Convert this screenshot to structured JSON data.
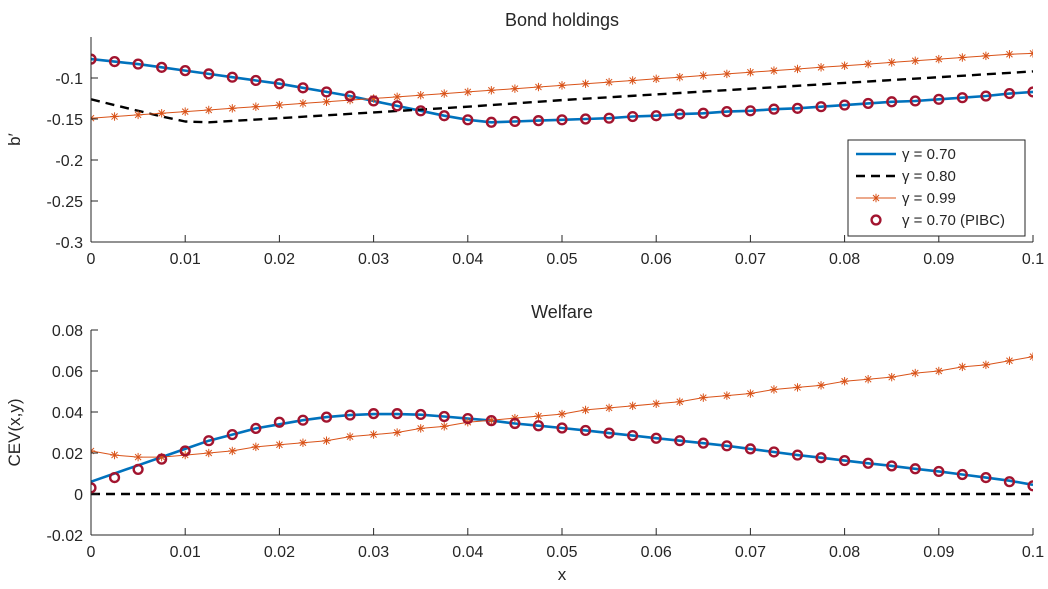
{
  "chart_data": [
    {
      "type": "line",
      "title": "Bond holdings",
      "xlabel": "",
      "ylabel": "b′",
      "xlim": [
        0,
        0.1
      ],
      "ylim": [
        -0.3,
        -0.05
      ],
      "xticks": [
        0,
        0.01,
        0.02,
        0.03,
        0.04,
        0.05,
        0.06,
        0.07,
        0.08,
        0.09,
        0.1
      ],
      "yticks": [
        -0.3,
        -0.25,
        -0.2,
        -0.15,
        -0.1
      ],
      "xtick_labels": [
        "0",
        "0.01",
        "0.02",
        "0.03",
        "0.04",
        "0.05",
        "0.06",
        "0.07",
        "0.08",
        "0.09",
        "0.1"
      ],
      "ytick_labels": [
        "-0.3",
        "-0.25",
        "-0.2",
        "-0.15",
        "-0.1"
      ],
      "grid": false,
      "legend_position": "bottom-right",
      "series": [
        {
          "name": "γ = 0.70",
          "style": "solid",
          "marker": "none",
          "color": "#0072BD",
          "x": [
            0,
            0.0025,
            0.005,
            0.0075,
            0.01,
            0.0125,
            0.015,
            0.0175,
            0.02,
            0.0225,
            0.025,
            0.0275,
            0.03,
            0.0325,
            0.035,
            0.0375,
            0.04,
            0.0425,
            0.045,
            0.0475,
            0.05,
            0.0525,
            0.055,
            0.0575,
            0.06,
            0.0625,
            0.065,
            0.0675,
            0.07,
            0.0725,
            0.075,
            0.0775,
            0.08,
            0.0825,
            0.085,
            0.0875,
            0.09,
            0.0925,
            0.095,
            0.0975,
            0.1
          ],
          "y": [
            -0.077,
            -0.08,
            -0.083,
            -0.087,
            -0.091,
            -0.095,
            -0.099,
            -0.103,
            -0.107,
            -0.112,
            -0.117,
            -0.122,
            -0.128,
            -0.134,
            -0.14,
            -0.146,
            -0.151,
            -0.154,
            -0.153,
            -0.152,
            -0.151,
            -0.15,
            -0.149,
            -0.147,
            -0.146,
            -0.144,
            -0.143,
            -0.141,
            -0.14,
            -0.138,
            -0.137,
            -0.135,
            -0.133,
            -0.131,
            -0.129,
            -0.128,
            -0.126,
            -0.124,
            -0.122,
            -0.119,
            -0.117
          ]
        },
        {
          "name": "γ = 0.80",
          "style": "dashed",
          "marker": "none",
          "color": "#000000",
          "x": [
            0,
            0.0025,
            0.005,
            0.0075,
            0.01,
            0.0125,
            0.02,
            0.03,
            0.04,
            0.05,
            0.06,
            0.07,
            0.08,
            0.09,
            0.1
          ],
          "y": [
            -0.126,
            -0.133,
            -0.14,
            -0.147,
            -0.153,
            -0.154,
            -0.149,
            -0.142,
            -0.135,
            -0.127,
            -0.12,
            -0.113,
            -0.106,
            -0.099,
            -0.092
          ]
        },
        {
          "name": "γ = 0.99",
          "style": "solid",
          "marker": "asterisk",
          "color": "#D95319",
          "x": [
            0,
            0.0025,
            0.005,
            0.0075,
            0.01,
            0.0125,
            0.015,
            0.0175,
            0.02,
            0.0225,
            0.025,
            0.0275,
            0.03,
            0.0325,
            0.035,
            0.0375,
            0.04,
            0.0425,
            0.045,
            0.0475,
            0.05,
            0.0525,
            0.055,
            0.0575,
            0.06,
            0.0625,
            0.065,
            0.0675,
            0.07,
            0.0725,
            0.075,
            0.0775,
            0.08,
            0.0825,
            0.085,
            0.0875,
            0.09,
            0.0925,
            0.095,
            0.0975,
            0.1
          ],
          "y": [
            -0.149,
            -0.147,
            -0.145,
            -0.143,
            -0.141,
            -0.139,
            -0.137,
            -0.135,
            -0.133,
            -0.131,
            -0.129,
            -0.127,
            -0.125,
            -0.123,
            -0.121,
            -0.119,
            -0.117,
            -0.115,
            -0.113,
            -0.111,
            -0.109,
            -0.107,
            -0.105,
            -0.103,
            -0.101,
            -0.099,
            -0.097,
            -0.095,
            -0.093,
            -0.091,
            -0.089,
            -0.087,
            -0.085,
            -0.083,
            -0.081,
            -0.079,
            -0.077,
            -0.075,
            -0.073,
            -0.071,
            -0.07
          ]
        },
        {
          "name": "γ = 0.70 (PIBC)",
          "style": "none",
          "marker": "circle",
          "color": "#A2142F",
          "x": [
            0,
            0.0025,
            0.005,
            0.0075,
            0.01,
            0.0125,
            0.015,
            0.0175,
            0.02,
            0.0225,
            0.025,
            0.0275,
            0.03,
            0.0325,
            0.035,
            0.0375,
            0.04,
            0.0425,
            0.045,
            0.0475,
            0.05,
            0.0525,
            0.055,
            0.0575,
            0.06,
            0.0625,
            0.065,
            0.0675,
            0.07,
            0.0725,
            0.075,
            0.0775,
            0.08,
            0.0825,
            0.085,
            0.0875,
            0.09,
            0.0925,
            0.095,
            0.0975,
            0.1
          ],
          "y": [
            -0.077,
            -0.08,
            -0.083,
            -0.087,
            -0.091,
            -0.095,
            -0.099,
            -0.103,
            -0.107,
            -0.112,
            -0.117,
            -0.122,
            -0.128,
            -0.134,
            -0.14,
            -0.146,
            -0.151,
            -0.154,
            -0.153,
            -0.152,
            -0.151,
            -0.15,
            -0.149,
            -0.147,
            -0.146,
            -0.144,
            -0.143,
            -0.141,
            -0.14,
            -0.138,
            -0.137,
            -0.135,
            -0.133,
            -0.131,
            -0.129,
            -0.128,
            -0.126,
            -0.124,
            -0.122,
            -0.119,
            -0.117
          ]
        }
      ]
    },
    {
      "type": "line",
      "title": "Welfare",
      "xlabel": "x",
      "ylabel": "CEV(x,y)",
      "xlim": [
        0,
        0.1
      ],
      "ylim": [
        -0.02,
        0.08
      ],
      "xticks": [
        0,
        0.01,
        0.02,
        0.03,
        0.04,
        0.05,
        0.06,
        0.07,
        0.08,
        0.09,
        0.1
      ],
      "yticks": [
        -0.02,
        0,
        0.02,
        0.04,
        0.06,
        0.08
      ],
      "xtick_labels": [
        "0",
        "0.01",
        "0.02",
        "0.03",
        "0.04",
        "0.05",
        "0.06",
        "0.07",
        "0.08",
        "0.09",
        "0.1"
      ],
      "ytick_labels": [
        "-0.02",
        "0",
        "0.02",
        "0.04",
        "0.06",
        "0.08"
      ],
      "grid": false,
      "series": [
        {
          "name": "γ = 0.70",
          "style": "solid",
          "marker": "none",
          "color": "#0072BD",
          "x": [
            0,
            0.0025,
            0.005,
            0.0075,
            0.01,
            0.0125,
            0.015,
            0.0175,
            0.02,
            0.0225,
            0.025,
            0.0275,
            0.03,
            0.0325,
            0.035,
            0.0375,
            0.04,
            0.0425,
            0.045,
            0.0475,
            0.05,
            0.0525,
            0.055,
            0.0575,
            0.06,
            0.0625,
            0.065,
            0.0675,
            0.07,
            0.0725,
            0.075,
            0.0775,
            0.08,
            0.0825,
            0.085,
            0.0875,
            0.09,
            0.0925,
            0.095,
            0.0975,
            0.1
          ],
          "y": [
            0.006,
            0.01,
            0.014,
            0.018,
            0.022,
            0.026,
            0.029,
            0.032,
            0.034,
            0.036,
            0.0375,
            0.0385,
            0.039,
            0.039,
            0.0387,
            0.0378,
            0.0368,
            0.0358,
            0.0344,
            0.0333,
            0.0322,
            0.031,
            0.0297,
            0.0285,
            0.0272,
            0.026,
            0.0248,
            0.0235,
            0.022,
            0.0205,
            0.019,
            0.0177,
            0.0163,
            0.015,
            0.0137,
            0.0123,
            0.011,
            0.0095,
            0.008,
            0.0065,
            0.0045
          ]
        },
        {
          "name": "γ = 0.80",
          "style": "dashed",
          "marker": "none",
          "color": "#000000",
          "x": [
            0,
            0.1
          ],
          "y": [
            0,
            0
          ]
        },
        {
          "name": "γ = 0.99",
          "style": "solid",
          "marker": "asterisk",
          "color": "#D95319",
          "x": [
            0,
            0.0025,
            0.005,
            0.0075,
            0.01,
            0.0125,
            0.015,
            0.0175,
            0.02,
            0.0225,
            0.025,
            0.0275,
            0.03,
            0.0325,
            0.035,
            0.0375,
            0.04,
            0.0425,
            0.045,
            0.0475,
            0.05,
            0.0525,
            0.055,
            0.0575,
            0.06,
            0.0625,
            0.065,
            0.0675,
            0.07,
            0.0725,
            0.075,
            0.0775,
            0.08,
            0.0825,
            0.085,
            0.0875,
            0.09,
            0.0925,
            0.095,
            0.0975,
            0.1
          ],
          "y": [
            0.021,
            0.019,
            0.018,
            0.018,
            0.019,
            0.02,
            0.021,
            0.023,
            0.024,
            0.025,
            0.026,
            0.028,
            0.029,
            0.03,
            0.032,
            0.033,
            0.035,
            0.036,
            0.037,
            0.038,
            0.039,
            0.041,
            0.042,
            0.043,
            0.044,
            0.045,
            0.047,
            0.048,
            0.049,
            0.051,
            0.052,
            0.053,
            0.055,
            0.056,
            0.057,
            0.059,
            0.06,
            0.062,
            0.063,
            0.065,
            0.067
          ]
        },
        {
          "name": "γ = 0.70 (PIBC)",
          "style": "none",
          "marker": "circle",
          "color": "#A2142F",
          "x": [
            0,
            0.0025,
            0.005,
            0.0075,
            0.01,
            0.0125,
            0.015,
            0.0175,
            0.02,
            0.0225,
            0.025,
            0.0275,
            0.03,
            0.0325,
            0.035,
            0.0375,
            0.04,
            0.0425,
            0.045,
            0.0475,
            0.05,
            0.0525,
            0.055,
            0.0575,
            0.06,
            0.0625,
            0.065,
            0.0675,
            0.07,
            0.0725,
            0.075,
            0.0775,
            0.08,
            0.0825,
            0.085,
            0.0875,
            0.09,
            0.0925,
            0.095,
            0.0975,
            0.1
          ],
          "y": [
            0.003,
            0.008,
            0.012,
            0.017,
            0.021,
            0.026,
            0.029,
            0.032,
            0.035,
            0.036,
            0.0375,
            0.0385,
            0.0392,
            0.0392,
            0.0388,
            0.0378,
            0.0368,
            0.0358,
            0.0344,
            0.0333,
            0.0322,
            0.031,
            0.0297,
            0.0285,
            0.0272,
            0.026,
            0.0248,
            0.0235,
            0.022,
            0.0205,
            0.019,
            0.0177,
            0.0163,
            0.015,
            0.0137,
            0.0123,
            0.011,
            0.0095,
            0.008,
            0.006,
            0.004
          ]
        }
      ]
    }
  ]
}
